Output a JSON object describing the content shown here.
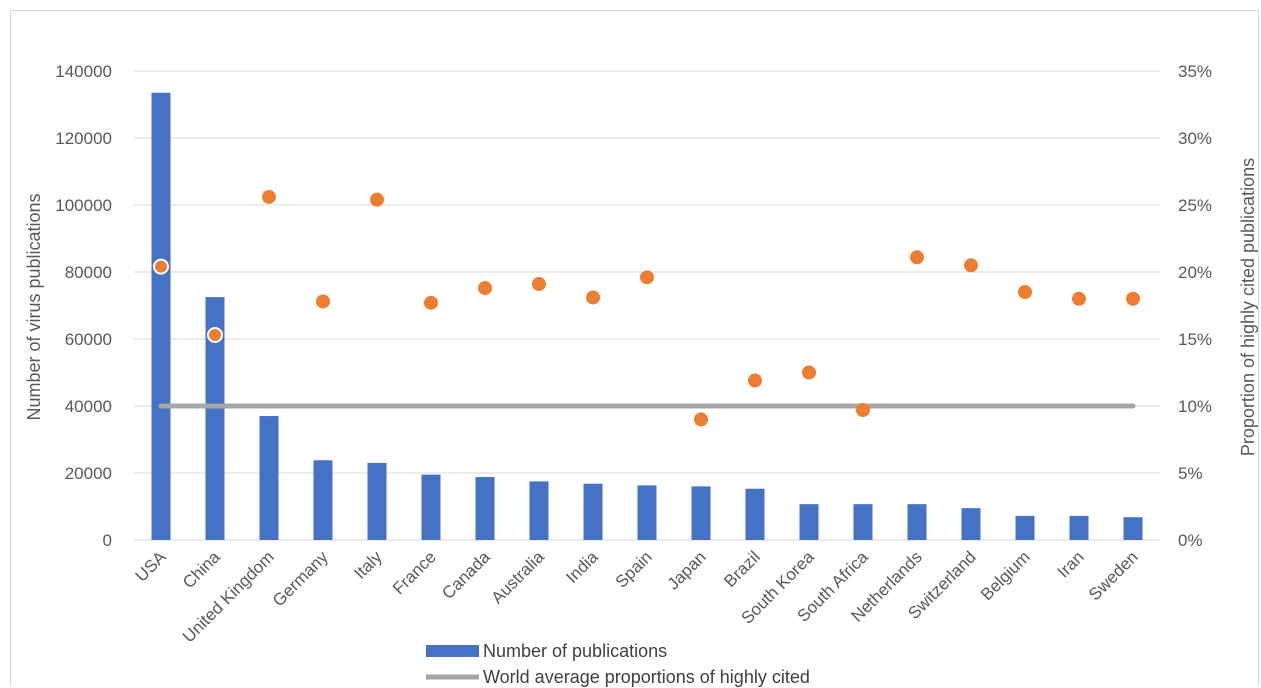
{
  "chart_data": {
    "type": "bar",
    "categories": [
      "USA",
      "China",
      "United Kingdom",
      "Germany",
      "Italy",
      "France",
      "Canada",
      "Australia",
      "India",
      "Spain",
      "Japan",
      "Brazil",
      "South Korea",
      "South Africa",
      "Netherlands",
      "Switzerland",
      "Belgium",
      "Iran",
      "Sweden"
    ],
    "series": [
      {
        "name": "Number of publications",
        "type": "bar",
        "axis": "left",
        "color": "#4472c4",
        "values": [
          133500,
          72500,
          37000,
          23800,
          23000,
          19500,
          18800,
          17500,
          16800,
          16300,
          16000,
          15300,
          10700,
          10700,
          10700,
          9500,
          7200,
          7200,
          6800
        ]
      },
      {
        "name": "World average proportions of highly cited",
        "type": "line",
        "axis": "right",
        "color": "#a5a5a5",
        "values": [
          0.1,
          0.1,
          0.1,
          0.1,
          0.1,
          0.1,
          0.1,
          0.1,
          0.1,
          0.1,
          0.1,
          0.1,
          0.1,
          0.1,
          0.1,
          0.1,
          0.1,
          0.1,
          0.1
        ]
      },
      {
        "type": "scatter",
        "axis": "right",
        "color": "#ed7d31",
        "values": [
          0.204,
          0.153,
          0.256,
          0.178,
          0.254,
          0.177,
          0.188,
          0.191,
          0.181,
          0.196,
          0.09,
          0.119,
          0.125,
          0.097,
          0.211,
          0.205,
          0.185,
          0.18,
          0.18
        ]
      }
    ],
    "ylabel": "Number of virus publications",
    "y2label": "Proportion of highly cited publications",
    "ylim": [
      0,
      140000
    ],
    "y2lim": [
      0,
      0.35
    ],
    "yticks": [
      "0",
      "20000",
      "40000",
      "60000",
      "80000",
      "100000",
      "120000",
      "140000"
    ],
    "y2ticks": [
      "0%",
      "5%",
      "10%",
      "15%",
      "20%",
      "25%",
      "30%",
      "35%"
    ],
    "grid": true,
    "legend": [
      {
        "label": "Number of publications",
        "swatch": "bar"
      },
      {
        "label": "World average proportions of highly cited",
        "swatch": "line"
      }
    ],
    "legend_position": "bottom"
  }
}
